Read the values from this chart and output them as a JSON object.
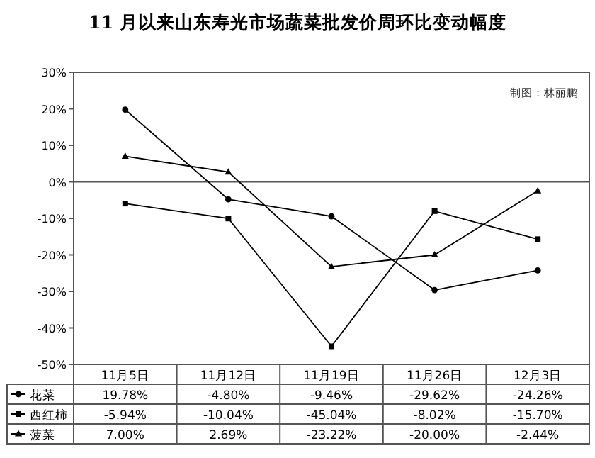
{
  "chart_data": {
    "type": "line",
    "title": "11 月以来山东寿光市场蔬菜批发价周环比变动幅度",
    "annotations": [
      "制图：林丽鹏"
    ],
    "categories": [
      "11月5日",
      "11月12日",
      "11月19日",
      "11月26日",
      "12月3日"
    ],
    "series": [
      {
        "name": "花菜",
        "color": "#000000",
        "marker": "circle",
        "values": [
          19.78,
          -4.8,
          -9.46,
          -29.62,
          -24.26
        ],
        "value_labels": [
          "19.78%",
          "-4.80%",
          "-9.46%",
          "-29.62%",
          "-24.26%"
        ]
      },
      {
        "name": "西红柿",
        "color": "#000000",
        "marker": "square",
        "values": [
          -5.94,
          -10.04,
          -45.04,
          -8.02,
          -15.7
        ],
        "value_labels": [
          "-5.94%",
          "-10.04%",
          "-45.04%",
          "-8.02%",
          "-15.70%"
        ]
      },
      {
        "name": "菠菜",
        "color": "#000000",
        "marker": "triangle",
        "values": [
          7.0,
          2.69,
          -23.22,
          -20.0,
          -2.44
        ],
        "value_labels": [
          "7.00%",
          "2.69%",
          "-23.22%",
          "-20.00%",
          "-2.44%"
        ]
      }
    ],
    "ylim": [
      -50,
      30
    ],
    "yticks": [
      {
        "value": 30,
        "label": "30%"
      },
      {
        "value": 20,
        "label": "20%"
      },
      {
        "value": 10,
        "label": "10%"
      },
      {
        "value": 0,
        "label": "0%"
      },
      {
        "value": -10,
        "label": "-10%"
      },
      {
        "value": -20,
        "label": "-20%"
      },
      {
        "value": -30,
        "label": "-30%"
      },
      {
        "value": -40,
        "label": "-40%"
      },
      {
        "value": -50,
        "label": "-50%"
      }
    ],
    "ref_lines": [
      {
        "axis": "y",
        "value": 0,
        "color": "#555555"
      }
    ],
    "legend": "bottom",
    "line_style": "solid"
  }
}
